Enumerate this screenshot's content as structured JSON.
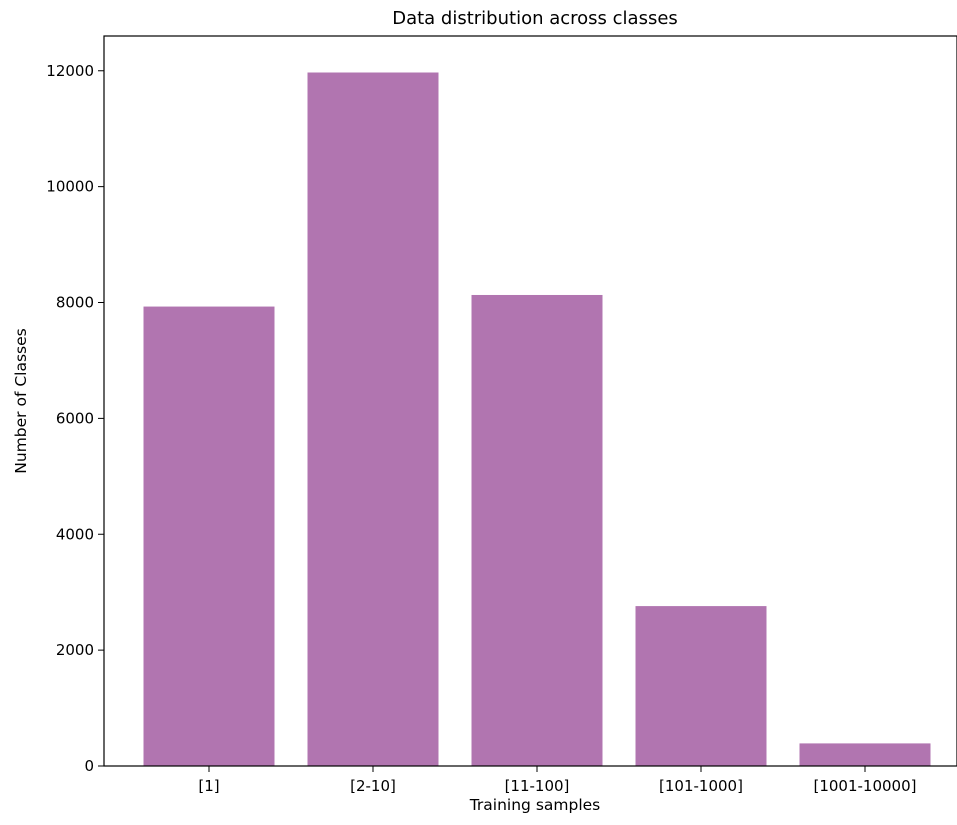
{
  "chart_data": {
    "type": "bar",
    "title": "Data distribution across classes",
    "xlabel": "Training samples",
    "ylabel": "Number of Classes",
    "categories": [
      "[1]",
      "[2-10]",
      "[11-100]",
      "[101-1000]",
      "[1001-10000]"
    ],
    "values": [
      7930,
      11970,
      8130,
      2760,
      390
    ],
    "ylim": [
      0,
      12600
    ],
    "yticks": [
      0,
      2000,
      4000,
      6000,
      8000,
      10000,
      12000
    ],
    "grid": false,
    "legend": "none"
  },
  "colors": {
    "bar": "#b175b0",
    "axis": "#000000",
    "background": "#ffffff"
  }
}
